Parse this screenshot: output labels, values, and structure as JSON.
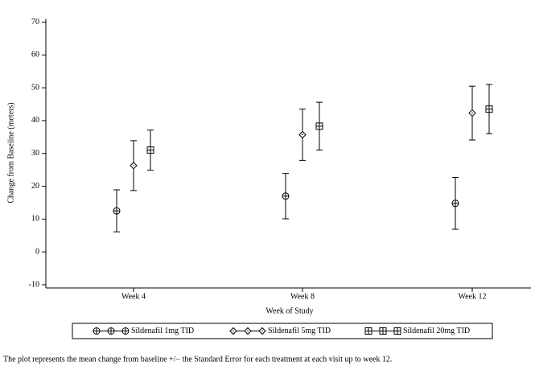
{
  "chart_data": {
    "type": "errorbar",
    "xlabel": "Week of Study",
    "ylabel": "Change from Baseline (meters)",
    "categories": [
      "Week 4",
      "Week 8",
      "Week 12"
    ],
    "ylim": [
      -10,
      70
    ],
    "yticks": [
      -10,
      0,
      10,
      20,
      30,
      40,
      50,
      60,
      70
    ],
    "grid": false,
    "legend": "bottom",
    "series": [
      {
        "name": "Sildenafil 1mg TID",
        "color": "#000000",
        "marker": "circle-plus",
        "values": [
          12.5,
          17,
          14.8
        ],
        "errors": [
          6.4,
          6.9,
          7.9
        ]
      },
      {
        "name": "Sildenafil 5mg TID",
        "color": "#000000",
        "marker": "diamond-dot",
        "values": [
          26.3,
          35.7,
          42.3
        ],
        "errors": [
          7.6,
          7.8,
          8.2
        ]
      },
      {
        "name": "Sildenafil 20mg TID",
        "color": "#000000",
        "marker": "square-plus",
        "values": [
          31,
          38.3,
          43.5
        ],
        "errors": [
          6.1,
          7.3,
          7.5
        ]
      }
    ],
    "note": "The plot represents the mean change from baseline +/− the Standard Error for each treatment at each visit up to week 12."
  }
}
